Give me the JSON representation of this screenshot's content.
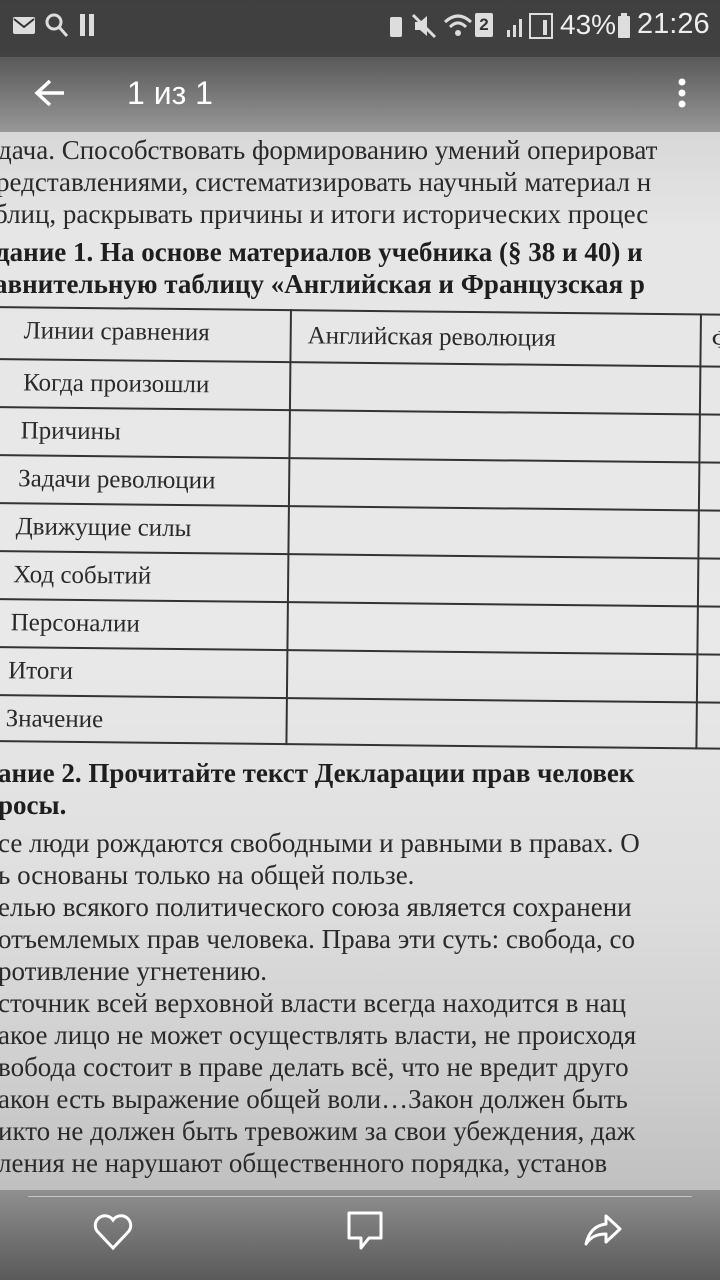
{
  "status_bar": {
    "battery": "43%",
    "time": "21:26",
    "sim_badge": "2"
  },
  "app_bar": {
    "title": "1 из 1"
  },
  "document": {
    "intro_lines": [
      "дача. Способствовать формированию умений оперироват",
      "редставлениями, систематизировать научный материал н",
      "блиц, раскрывать причины и итоги исторических процес"
    ],
    "task1_lines": [
      "дание 1. На основе материалов учебника (§ 38 и 40) и",
      "авнительную таблицу «Английская и Французская р"
    ],
    "table": {
      "headers": [
        "Линии сравнения",
        "Английская революция",
        "Ф"
      ],
      "rows": [
        "Когда произошли",
        "Причины",
        "Задачи революции",
        "Движущие силы",
        "Ход событий",
        "Персоналии",
        "Итоги",
        "Значение"
      ]
    },
    "task2_lines": [
      "ание 2. Прочитайте текст Декларации прав человек",
      "росы."
    ],
    "text_lines": [
      "се люди рождаются свободными и равными в правах. О",
      "ь основаны только на общей пользе.",
      "елью всякого политического союза является сохранени",
      "отъемлемых прав человека. Права эти суть: свобода, со",
      "ротивление угнетению.",
      "сточник всей верховной власти всегда находится в нац",
      "акое лицо не может осуществлять власти, не происходя",
      "вобода состоит в праве делать всё, что не вредит друго",
      "акон есть выражение общей воли…Закон должен быть",
      "икто не должен быть тревожим за свои убеждения, даж",
      "ления не нарушают общественного порядка, установ"
    ]
  },
  "bottom_bar": {
    "icons": [
      "heart-icon",
      "comment-icon",
      "share-icon"
    ]
  }
}
